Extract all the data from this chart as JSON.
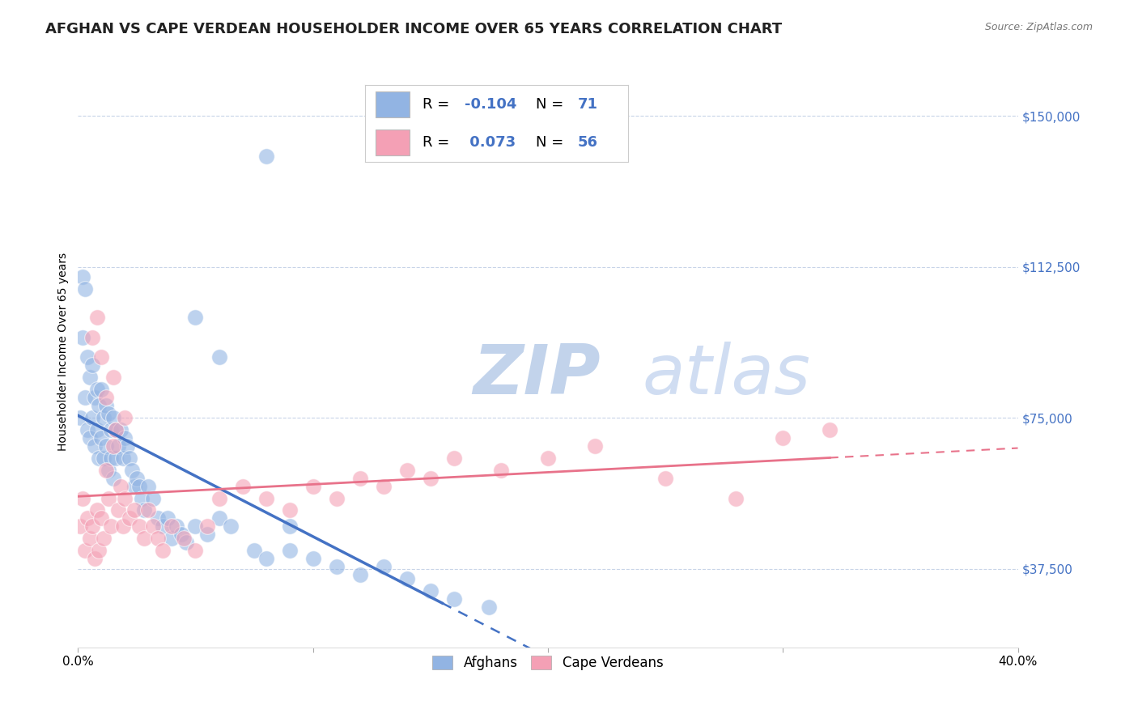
{
  "title": "AFGHAN VS CAPE VERDEAN HOUSEHOLDER INCOME OVER 65 YEARS CORRELATION CHART",
  "source": "Source: ZipAtlas.com",
  "ylabel": "Householder Income Over 65 years",
  "yticks": [
    37500,
    75000,
    112500,
    150000
  ],
  "ytick_labels": [
    "$37,500",
    "$75,000",
    "$112,500",
    "$150,000"
  ],
  "xlim": [
    0.0,
    0.4
  ],
  "ylim": [
    18000,
    165000
  ],
  "afghan_color": "#92b4e3",
  "cape_verdean_color": "#f4a0b5",
  "afghan_line_color": "#4472c4",
  "cape_verdean_line_color": "#e8728a",
  "watermark_zip": "ZIP",
  "watermark_atlas": "atlas",
  "watermark_color": "#c8d8f0",
  "background_color": "#ffffff",
  "grid_color": "#c8d4e8",
  "title_fontsize": 13,
  "axis_label_fontsize": 10,
  "tick_label_fontsize": 11,
  "afghan_x": [
    0.001,
    0.002,
    0.002,
    0.003,
    0.003,
    0.004,
    0.004,
    0.005,
    0.005,
    0.006,
    0.006,
    0.007,
    0.007,
    0.008,
    0.008,
    0.009,
    0.009,
    0.01,
    0.01,
    0.011,
    0.011,
    0.012,
    0.012,
    0.013,
    0.013,
    0.014,
    0.014,
    0.015,
    0.015,
    0.016,
    0.016,
    0.017,
    0.018,
    0.019,
    0.02,
    0.021,
    0.022,
    0.023,
    0.024,
    0.025,
    0.026,
    0.027,
    0.028,
    0.03,
    0.032,
    0.034,
    0.036,
    0.038,
    0.04,
    0.042,
    0.044,
    0.046,
    0.05,
    0.055,
    0.06,
    0.065,
    0.075,
    0.08,
    0.09,
    0.1,
    0.11,
    0.12,
    0.13,
    0.14,
    0.15,
    0.16,
    0.175,
    0.08,
    0.09,
    0.05,
    0.06
  ],
  "afghan_y": [
    75000,
    110000,
    95000,
    107000,
    80000,
    90000,
    72000,
    85000,
    70000,
    88000,
    75000,
    80000,
    68000,
    82000,
    72000,
    78000,
    65000,
    82000,
    70000,
    75000,
    65000,
    78000,
    68000,
    76000,
    62000,
    72000,
    65000,
    75000,
    60000,
    72000,
    65000,
    68000,
    72000,
    65000,
    70000,
    68000,
    65000,
    62000,
    58000,
    60000,
    58000,
    55000,
    52000,
    58000,
    55000,
    50000,
    48000,
    50000,
    45000,
    48000,
    46000,
    44000,
    48000,
    46000,
    50000,
    48000,
    42000,
    40000,
    42000,
    40000,
    38000,
    36000,
    38000,
    35000,
    32000,
    30000,
    28000,
    140000,
    48000,
    100000,
    90000
  ],
  "cape_verdean_x": [
    0.001,
    0.002,
    0.003,
    0.004,
    0.005,
    0.006,
    0.007,
    0.008,
    0.009,
    0.01,
    0.011,
    0.012,
    0.013,
    0.014,
    0.015,
    0.016,
    0.017,
    0.018,
    0.019,
    0.02,
    0.022,
    0.024,
    0.026,
    0.028,
    0.03,
    0.032,
    0.034,
    0.036,
    0.04,
    0.045,
    0.05,
    0.055,
    0.06,
    0.07,
    0.08,
    0.09,
    0.1,
    0.11,
    0.12,
    0.13,
    0.14,
    0.15,
    0.16,
    0.18,
    0.2,
    0.22,
    0.25,
    0.28,
    0.3,
    0.32,
    0.006,
    0.008,
    0.01,
    0.012,
    0.015,
    0.02
  ],
  "cape_verdean_y": [
    48000,
    55000,
    42000,
    50000,
    45000,
    48000,
    40000,
    52000,
    42000,
    50000,
    45000,
    62000,
    55000,
    48000,
    68000,
    72000,
    52000,
    58000,
    48000,
    55000,
    50000,
    52000,
    48000,
    45000,
    52000,
    48000,
    45000,
    42000,
    48000,
    45000,
    42000,
    48000,
    55000,
    58000,
    55000,
    52000,
    58000,
    55000,
    60000,
    58000,
    62000,
    60000,
    65000,
    62000,
    65000,
    68000,
    60000,
    55000,
    70000,
    72000,
    95000,
    100000,
    90000,
    80000,
    85000,
    75000
  ]
}
